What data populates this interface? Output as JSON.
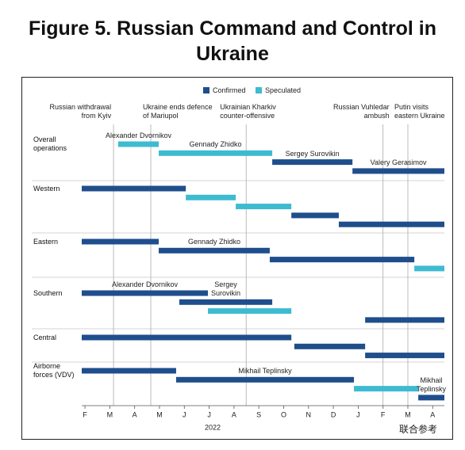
{
  "chart_data": {
    "type": "gantt",
    "title": "Figure 5. Russian Command and Control in Ukraine",
    "series": [
      {
        "name": "Confirmed",
        "color": "#1f4e8c"
      },
      {
        "name": "Speculated",
        "color": "#3dbbd1"
      }
    ],
    "xlim": [
      -0.13,
      14.47
    ],
    "xticks": [
      {
        "value": 0,
        "label": "F"
      },
      {
        "value": 1,
        "label": "M"
      },
      {
        "value": 2,
        "label": "A"
      },
      {
        "value": 3,
        "label": "M"
      },
      {
        "value": 4,
        "label": "J"
      },
      {
        "value": 5,
        "label": "J"
      },
      {
        "value": 6,
        "label": "A"
      },
      {
        "value": 7,
        "label": "S"
      },
      {
        "value": 8,
        "label": "O"
      },
      {
        "value": 9,
        "label": "N"
      },
      {
        "value": 10,
        "label": "D"
      },
      {
        "value": 11,
        "label": "J"
      },
      {
        "value": 12,
        "label": "F"
      },
      {
        "value": 13,
        "label": "M"
      },
      {
        "value": 14,
        "label": "A"
      }
    ],
    "x_label": "2022",
    "events": [
      {
        "x": 1.15,
        "label": "Russian withdrawal from Kyiv"
      },
      {
        "x": 2.65,
        "label": "Ukraine ends defence of Mariupol"
      },
      {
        "x": 6.49,
        "label": "Ukrainian Kharkiv counter-offensive"
      },
      {
        "x": 12.0,
        "label": "Russian Vuhledar ambush"
      },
      {
        "x": 13.0,
        "label": "Putin visits eastern Ukraine"
      }
    ],
    "rows": [
      {
        "name": "Overall operations",
        "bars": [
          {
            "start": 1.34,
            "end": 2.97,
            "series": 1,
            "label": "Alexander Dvornikov"
          },
          {
            "start": 2.97,
            "end": 7.54,
            "series": 1,
            "label": "Gennady Zhidko"
          },
          {
            "start": 7.54,
            "end": 10.77,
            "series": 0,
            "label": "Sergey Surovikin"
          },
          {
            "start": 10.77,
            "end": 14.47,
            "series": 0,
            "label": "Valery Gerasimov"
          }
        ]
      },
      {
        "name": "Western",
        "bars": [
          {
            "start": -0.13,
            "end": 4.06,
            "series": 0
          },
          {
            "start": 4.06,
            "end": 6.07,
            "series": 1
          },
          {
            "start": 6.07,
            "end": 8.31,
            "series": 1
          },
          {
            "start": 8.31,
            "end": 10.22,
            "series": 0
          },
          {
            "start": 10.22,
            "end": 14.47,
            "series": 0
          }
        ]
      },
      {
        "name": "Eastern",
        "bars": [
          {
            "start": -0.13,
            "end": 2.97,
            "series": 0
          },
          {
            "start": 2.97,
            "end": 7.44,
            "series": 0,
            "label": "Gennady Zhidko"
          },
          {
            "start": 7.44,
            "end": 13.26,
            "series": 0
          },
          {
            "start": 13.26,
            "end": 14.47,
            "series": 1
          }
        ]
      },
      {
        "name": "Southern",
        "bars": [
          {
            "start": -0.13,
            "end": 4.95,
            "series": 0,
            "label": "Alexander Dvornikov"
          },
          {
            "start": 3.8,
            "end": 7.54,
            "series": 0,
            "label": "Sergey Surovikin"
          },
          {
            "start": 4.95,
            "end": 8.31,
            "series": 1
          },
          {
            "start": 11.28,
            "end": 14.47,
            "series": 0
          }
        ]
      },
      {
        "name": "Central",
        "bars": [
          {
            "start": -0.13,
            "end": 8.31,
            "series": 0
          },
          {
            "start": 8.43,
            "end": 11.28,
            "series": 0
          },
          {
            "start": 11.28,
            "end": 14.47,
            "series": 0
          }
        ]
      },
      {
        "name": "Airborne forces (VDV)",
        "bars": [
          {
            "start": -0.13,
            "end": 3.67,
            "series": 0
          },
          {
            "start": 3.67,
            "end": 10.83,
            "series": 0,
            "label": "Mikhail Teplinsky"
          },
          {
            "start": 10.83,
            "end": 13.42,
            "series": 1
          },
          {
            "start": 13.42,
            "end": 14.47,
            "series": 0,
            "label": "Mikhail Teplinsky"
          }
        ]
      }
    ],
    "watermark": "联合参考"
  }
}
